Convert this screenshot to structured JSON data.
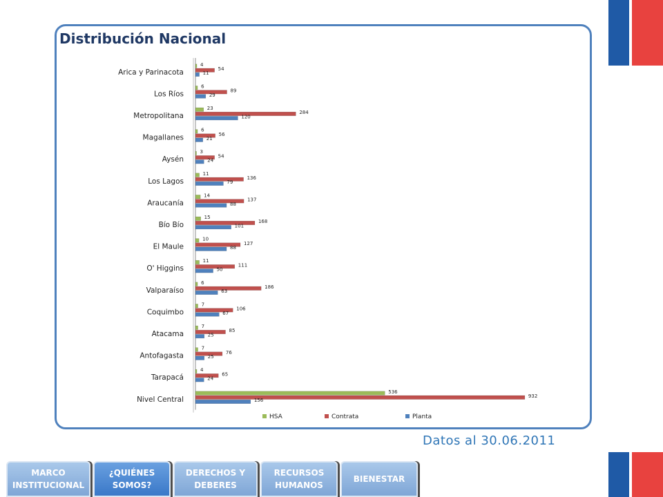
{
  "page": {
    "title": "Distribución Nacional",
    "date_note": "Datos al 30.06.2011"
  },
  "colors": {
    "accent_blue": "#4f81bd",
    "flag_blue": "#1f5aa6",
    "flag_red": "#e8423f",
    "hsa": "#9bbb59",
    "contrata": "#c0504d",
    "planta": "#4f81bd"
  },
  "nav": {
    "items": [
      {
        "label": "MARCO INSTITUCIONAL"
      },
      {
        "label": "¿QUIÉNES SOMOS?"
      },
      {
        "label": "DERECHOS Y DEBERES"
      },
      {
        "label": "RECURSOS HUMANOS"
      },
      {
        "label": "BIENESTAR"
      }
    ]
  },
  "chart_data": {
    "type": "bar",
    "orientation": "horizontal",
    "categories": [
      "Arica y Parinacota",
      "Los Ríos",
      "Metropolitana",
      "Magallanes",
      "Aysén",
      "Los Lagos",
      "Araucanía",
      "Bío Bío",
      "El Maule",
      "O' Higgins",
      "Valparaíso",
      "Coquimbo",
      "Atacama",
      "Antofagasta",
      "Tarapacá",
      "Nivel Central"
    ],
    "series": [
      {
        "name": "HSA",
        "values": [
          4,
          6,
          23,
          6,
          3,
          11,
          14,
          15,
          10,
          11,
          6,
          7,
          7,
          7,
          4,
          536
        ]
      },
      {
        "name": "Contrata",
        "values": [
          54,
          89,
          284,
          56,
          54,
          136,
          137,
          168,
          127,
          111,
          186,
          106,
          85,
          76,
          65,
          932
        ]
      },
      {
        "name": "Planta",
        "values": [
          11,
          29,
          120,
          21,
          24,
          79,
          88,
          101,
          88,
          50,
          63,
          67,
          25,
          25,
          24,
          156
        ]
      }
    ],
    "xlim": [
      0,
      940
    ],
    "legend": "bottom"
  }
}
